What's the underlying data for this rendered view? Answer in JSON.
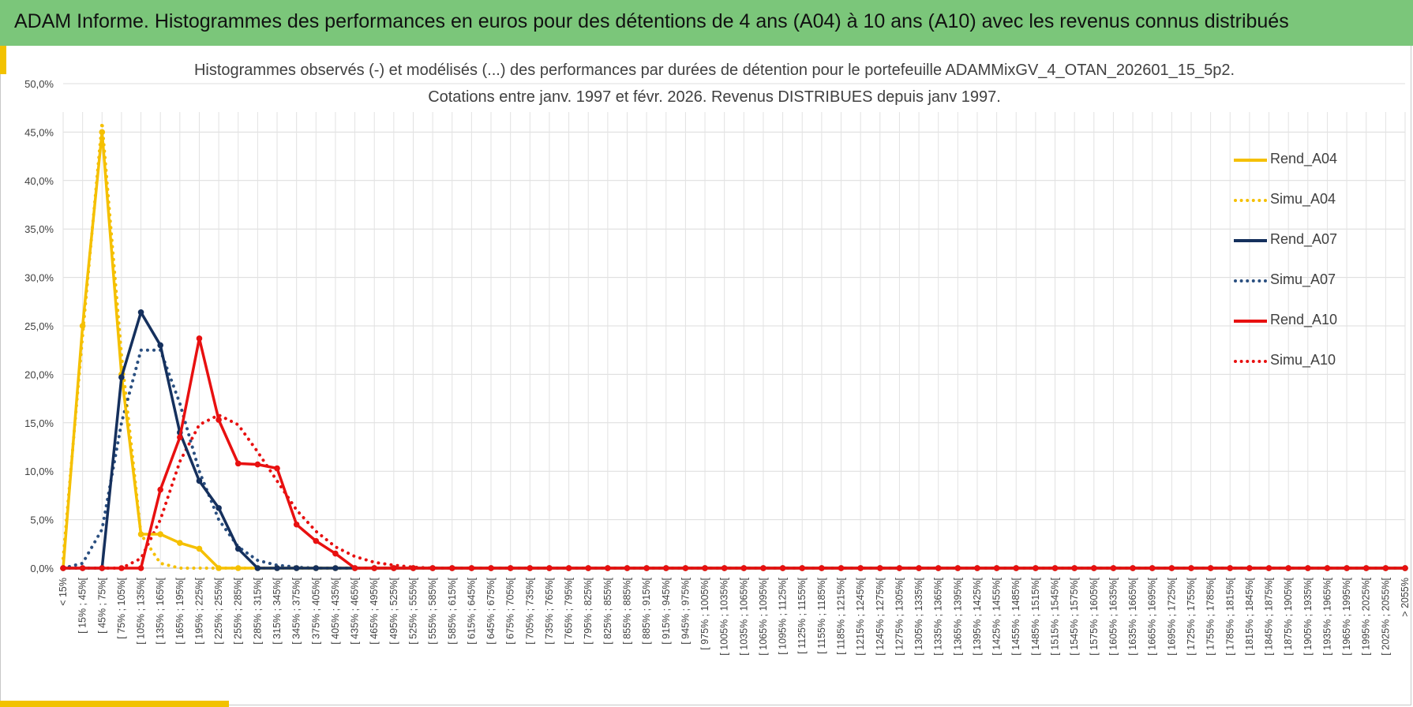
{
  "banner": {
    "title": "ADAM Informe. Histogrammes des performances en euros pour des détentions de 4 ans (A04) à 10 ans (A10) avec les revenus connus distribués"
  },
  "colors": {
    "A04": "#f5c000",
    "A07": "#15305d",
    "A10": "#e81010",
    "banner": "#7bc67a"
  },
  "chart_data": {
    "type": "line",
    "title": "Histogrammes observés (-) et modélisés (...) des performances par durées de détention pour le portefeuille ADAMMixGV_4_OTAN_202601_15_5p2.",
    "subtitle": "Cotations entre janv. 1997 et févr. 2026. Revenus DISTRIBUES depuis janv 1997.",
    "ylim": [
      0,
      0.5
    ],
    "yticks": [
      "0,0%",
      "5,0%",
      "10,0%",
      "15,0%",
      "20,0%",
      "25,0%",
      "30,0%",
      "35,0%",
      "40,0%",
      "45,0%",
      "50,0%"
    ],
    "grid": true,
    "legend_position": "right",
    "categories": [
      "< 15%",
      "[ 15% ; 45%[",
      "[ 45% ; 75%[",
      "[ 75% ; 105%[",
      "[ 105% ; 135%[",
      "[ 135% ; 165%[",
      "[ 165% ; 195%[",
      "[ 195% ; 225%[",
      "[ 225% ; 255%[",
      "[ 255% ; 285%[",
      "[ 285% ; 315%[",
      "[ 315% ; 345%[",
      "[ 345% ; 375%[",
      "[ 375% ; 405%[",
      "[ 405% ; 435%[",
      "[ 435% ; 465%[",
      "[ 465% ; 495%[",
      "[ 495% ; 525%[",
      "[ 525% ; 555%[",
      "[ 555% ; 585%[",
      "[ 585% ; 615%[",
      "[ 615% ; 645%[",
      "[ 645% ; 675%[",
      "[ 675% ; 705%[",
      "[ 705% ; 735%[",
      "[ 735% ; 765%[",
      "[ 765% ; 795%[",
      "[ 795% ; 825%[",
      "[ 825% ; 855%[",
      "[ 855% ; 885%[",
      "[ 885% ; 915%[",
      "[ 915% ; 945%[",
      "[ 945% ; 975%[",
      "[ 975% ; 1005%[",
      "[ 1005% ; 1035%[",
      "[ 1035% ; 1065%[",
      "[ 1065% ; 1095%[",
      "[ 1095% ; 1125%[",
      "[ 1125% ; 1155%[",
      "[ 1155% ; 1185%[",
      "[ 1185% ; 1215%[",
      "[ 1215% ; 1245%[",
      "[ 1245% ; 1275%[",
      "[ 1275% ; 1305%[",
      "[ 1305% ; 1335%[",
      "[ 1335% ; 1365%[",
      "[ 1365% ; 1395%[",
      "[ 1395% ; 1425%[",
      "[ 1425% ; 1455%[",
      "[ 1455% ; 1485%[",
      "[ 1485% ; 1515%[",
      "[ 1515% ; 1545%[",
      "[ 1545% ; 1575%[",
      "[ 1575% ; 1605%[",
      "[ 1605% ; 1635%[",
      "[ 1635% ; 1665%[",
      "[ 1665% ; 1695%[",
      "[ 1695% ; 1725%[",
      "[ 1725% ; 1755%[",
      "[ 1755% ; 1785%[",
      "[ 1785% ; 1815%[",
      "[ 1815% ; 1845%[",
      "[ 1845% ; 1875%[",
      "[ 1875% ; 1905%[",
      "[ 1905% ; 1935%[",
      "[ 1935% ; 1965%[",
      "[ 1965% ; 1995%[",
      "[ 1995% ; 2025%[",
      "[ 2025% ; 2055%[",
      "> 2055%"
    ],
    "series": [
      {
        "name": "Rend_A04",
        "style": "solid",
        "color": "#f5c000",
        "values": [
          0.0,
          0.25,
          0.45,
          0.2,
          0.035,
          0.035,
          0.026,
          0.02,
          0.0,
          0.0,
          0.0,
          0.0,
          0.0,
          0.0,
          0.0,
          0.0,
          0,
          0,
          0,
          0,
          0,
          0,
          0,
          0,
          0,
          0,
          0,
          0,
          0,
          0,
          0,
          0,
          0,
          0,
          0,
          0,
          0,
          0,
          0,
          0,
          0,
          0,
          0,
          0,
          0,
          0,
          0,
          0,
          0,
          0,
          0,
          0,
          0,
          0,
          0,
          0,
          0,
          0,
          0,
          0,
          0,
          0,
          0,
          0,
          0,
          0,
          0,
          0,
          0,
          0
        ]
      },
      {
        "name": "Simu_A04",
        "style": "dotted",
        "color": "#f5c000",
        "values": [
          0.01,
          0.24,
          0.46,
          0.22,
          0.035,
          0.005,
          0.0,
          0.0,
          0.0,
          0.0,
          0.0,
          0.0,
          0.0,
          0.0,
          0.0,
          0.0,
          0,
          0,
          0,
          0,
          0,
          0,
          0,
          0,
          0,
          0,
          0,
          0,
          0,
          0,
          0,
          0,
          0,
          0,
          0,
          0,
          0,
          0,
          0,
          0,
          0,
          0,
          0,
          0,
          0,
          0,
          0,
          0,
          0,
          0,
          0,
          0,
          0,
          0,
          0,
          0,
          0,
          0,
          0,
          0,
          0,
          0,
          0,
          0,
          0,
          0,
          0,
          0,
          0,
          0
        ]
      },
      {
        "name": "Rend_A07",
        "style": "solid",
        "color": "#15305d",
        "values": [
          0.0,
          0.0,
          0.0,
          0.197,
          0.264,
          0.23,
          0.14,
          0.09,
          0.062,
          0.02,
          0.0,
          0.0,
          0.0,
          0.0,
          0.0,
          0.0,
          0,
          0,
          0,
          0,
          0,
          0,
          0,
          0,
          0,
          0,
          0,
          0,
          0,
          0,
          0,
          0,
          0,
          0,
          0,
          0,
          0,
          0,
          0,
          0,
          0,
          0,
          0,
          0,
          0,
          0,
          0,
          0,
          0,
          0,
          0,
          0,
          0,
          0,
          0,
          0,
          0,
          0,
          0,
          0,
          0,
          0,
          0,
          0,
          0,
          0,
          0,
          0,
          0,
          0
        ]
      },
      {
        "name": "Simu_A07",
        "style": "dotted",
        "color": "#2a4f80",
        "values": [
          0.0,
          0.005,
          0.04,
          0.15,
          0.225,
          0.225,
          0.17,
          0.1,
          0.05,
          0.022,
          0.008,
          0.003,
          0.001,
          0.0,
          0.0,
          0.0,
          0,
          0,
          0,
          0,
          0,
          0,
          0,
          0,
          0,
          0,
          0,
          0,
          0,
          0,
          0,
          0,
          0,
          0,
          0,
          0,
          0,
          0,
          0,
          0,
          0,
          0,
          0,
          0,
          0,
          0,
          0,
          0,
          0,
          0,
          0,
          0,
          0,
          0,
          0,
          0,
          0,
          0,
          0,
          0,
          0,
          0,
          0,
          0,
          0,
          0,
          0,
          0,
          0,
          0
        ]
      },
      {
        "name": "Rend_A10",
        "style": "solid",
        "color": "#e81010",
        "values": [
          0.0,
          0.0,
          0.0,
          0.0,
          0.0,
          0.081,
          0.135,
          0.237,
          0.153,
          0.108,
          0.107,
          0.103,
          0.045,
          0.028,
          0.015,
          0.0,
          0,
          0,
          0,
          0,
          0,
          0,
          0,
          0,
          0,
          0,
          0,
          0,
          0,
          0,
          0,
          0,
          0,
          0,
          0,
          0,
          0,
          0,
          0,
          0,
          0,
          0,
          0,
          0,
          0,
          0,
          0,
          0,
          0,
          0,
          0,
          0,
          0,
          0,
          0,
          0,
          0,
          0,
          0,
          0,
          0,
          0,
          0,
          0,
          0,
          0,
          0,
          0,
          0,
          0
        ]
      },
      {
        "name": "Simu_A10",
        "style": "dotted",
        "color": "#e81010",
        "values": [
          0.0,
          0.0,
          0.0,
          0.0,
          0.01,
          0.05,
          0.11,
          0.148,
          0.158,
          0.148,
          0.12,
          0.09,
          0.06,
          0.038,
          0.022,
          0.012,
          0.006,
          0.003,
          0.001,
          0.0,
          0,
          0,
          0,
          0,
          0,
          0,
          0,
          0,
          0,
          0,
          0,
          0,
          0,
          0,
          0,
          0,
          0,
          0,
          0,
          0,
          0,
          0,
          0,
          0,
          0,
          0,
          0,
          0,
          0,
          0,
          0,
          0,
          0,
          0,
          0,
          0,
          0,
          0,
          0,
          0,
          0,
          0,
          0,
          0,
          0,
          0,
          0,
          0,
          0,
          0
        ]
      }
    ]
  }
}
